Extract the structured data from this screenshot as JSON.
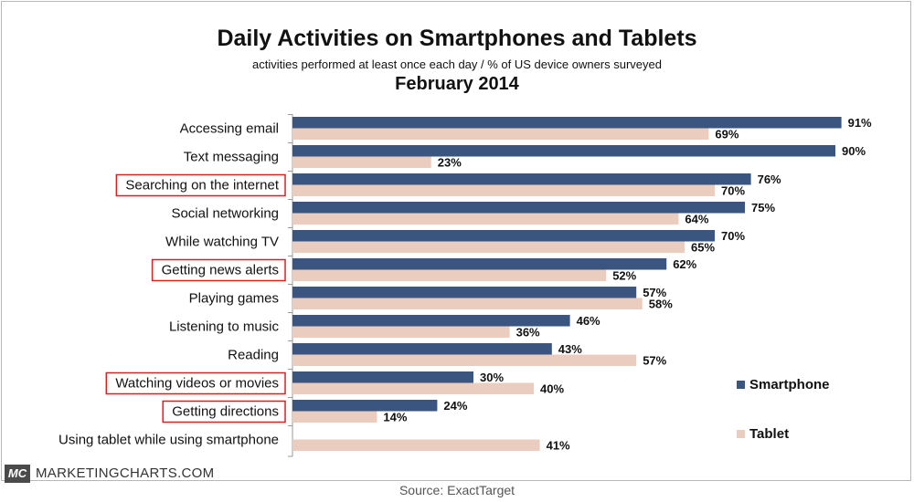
{
  "header": {
    "title": "Daily Activities on Smartphones and Tablets",
    "subtitle": "activities performed at least once each day / % of US device owners surveyed",
    "date": "February 2014"
  },
  "footer": {
    "logo_text": "MC",
    "brand": "MARKETINGCHARTS.COM",
    "source": "Source: ExactTarget"
  },
  "colors": {
    "smartphone": "#3a5680",
    "tablet": "#eacdbf",
    "highlight_box": "#d62020"
  },
  "chart_data": {
    "type": "bar",
    "orientation": "horizontal",
    "title": "Daily Activities on Smartphones and Tablets",
    "categories": [
      "Accessing email",
      "Text messaging",
      "Searching on the internet",
      "Social networking",
      "While watching TV",
      "Getting news alerts",
      "Playing games",
      "Listening to music",
      "Reading",
      "Watching videos or movies",
      "Getting directions",
      "Using tablet while using smartphone"
    ],
    "highlighted": [
      false,
      false,
      true,
      false,
      false,
      true,
      false,
      false,
      false,
      true,
      true,
      false
    ],
    "series": [
      {
        "name": "Smartphone",
        "values": [
          91,
          90,
          76,
          75,
          70,
          62,
          57,
          46,
          43,
          30,
          24,
          null
        ],
        "labels": [
          "91%",
          "90%",
          "76%",
          "75%",
          "70%",
          "62%",
          "57%",
          "46%",
          "43%",
          "30%",
          "24%",
          ""
        ]
      },
      {
        "name": "Tablet",
        "values": [
          69,
          23,
          70,
          64,
          65,
          52,
          58,
          36,
          57,
          40,
          14,
          41
        ],
        "labels": [
          "69%",
          "23%",
          "70%",
          "64%",
          "65%",
          "52%",
          "58%",
          "36%",
          "57%",
          "40%",
          "14%",
          "41%"
        ]
      }
    ],
    "xlim": [
      0,
      100
    ],
    "grid": false,
    "legend_position": "right"
  }
}
